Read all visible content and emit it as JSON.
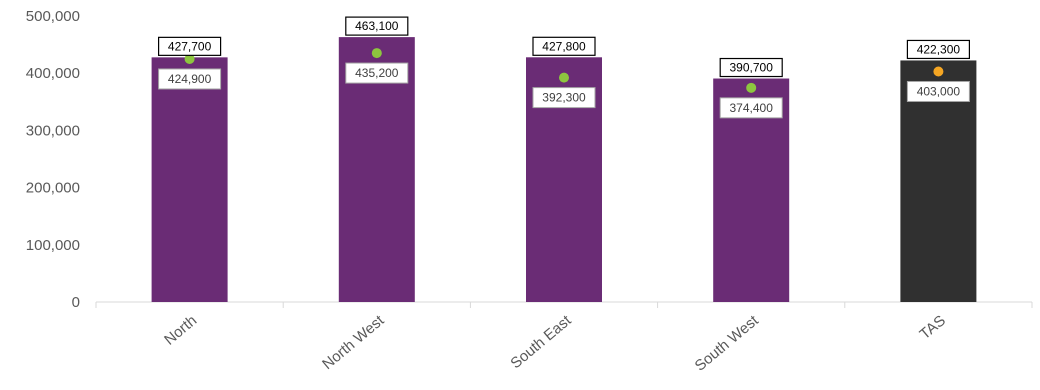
{
  "chart_data": {
    "type": "bar",
    "title": "",
    "xlabel": "",
    "ylabel": "",
    "categories": [
      "North",
      "North West",
      "South East",
      "South West",
      "TAS"
    ],
    "series": [
      {
        "values": [
          427700,
          463100,
          427800,
          390700,
          422300
        ],
        "labels": [
          "427,700",
          "463,100",
          "427,800",
          "390,700",
          "422,300"
        ],
        "colors": [
          "#6a2c75",
          "#6a2c75",
          "#6a2c75",
          "#6a2c75",
          "#303030"
        ]
      },
      {
        "type": "scatter",
        "values": [
          424900,
          435200,
          392300,
          374400,
          403000
        ],
        "labels": [
          "424,900",
          "435,200",
          "392,300",
          "374,400",
          "403,000"
        ],
        "colors": [
          "#8dc63f",
          "#8dc63f",
          "#8dc63f",
          "#8dc63f",
          "#f5a623"
        ]
      }
    ],
    "ylim": [
      0,
      500000
    ],
    "yticks": [
      0,
      100000,
      200000,
      300000,
      400000,
      500000
    ],
    "ytick_labels": [
      "0",
      "100,000",
      "200,000",
      "300,000",
      "400,000",
      "500,000"
    ],
    "grid": false,
    "legend": "none"
  }
}
